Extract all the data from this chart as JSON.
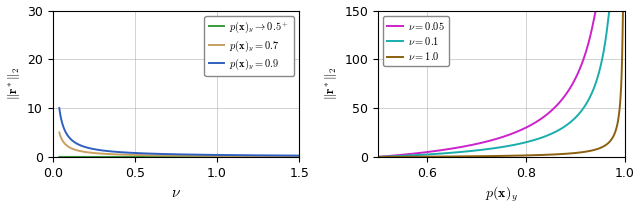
{
  "left": {
    "p_values": [
      0.500001,
      0.7,
      0.9
    ],
    "nu_range": [
      0.04,
      1.5
    ],
    "ylim": [
      0,
      30
    ],
    "yticks": [
      0,
      10,
      20,
      30
    ],
    "xticks": [
      0,
      0.5,
      1.0,
      1.5
    ],
    "xlabel": "$\\nu$",
    "ylabel": "$\\|\\mathbf{r}^*\\|_2$",
    "colors": [
      "#3a9a3a",
      "#c8a060",
      "#3060c0"
    ],
    "labels": [
      "$p(\\mathbf{x})_y \\to 0.5^+$",
      "$p(\\mathbf{x})_y = 0.7$",
      "$p(\\mathbf{x})_y = 0.9$"
    ]
  },
  "right": {
    "nu_values": [
      0.05,
      0.1,
      1.0
    ],
    "p_range": [
      0.501,
      0.9993
    ],
    "ylim": [
      0,
      150
    ],
    "yticks": [
      0,
      50,
      100,
      150
    ],
    "xticks": [
      0.6,
      0.8,
      1.0
    ],
    "xlabel": "$p(\\mathbf{x})_y$",
    "ylabel": "$\\|\\mathbf{r}^*\\|_2$",
    "colors": [
      "#cc22cc",
      "#1aadad",
      "#8b6010"
    ],
    "labels": [
      "$\\nu = 0.05$",
      "$\\nu = 0.1$",
      "$\\nu = 1.0$"
    ]
  },
  "figsize": [
    6.4,
    2.1
  ],
  "dpi": 100
}
